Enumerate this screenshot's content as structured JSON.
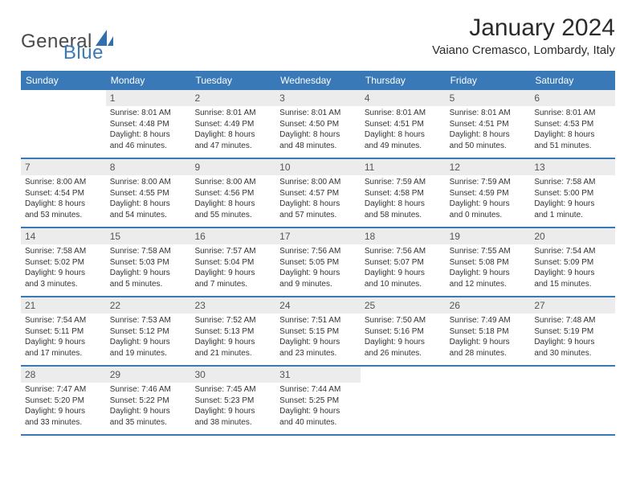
{
  "logo": {
    "word1": "General",
    "word2": "Blue",
    "tri_color": "#2f6fae"
  },
  "header": {
    "month_title": "January 2024",
    "location": "Vaiano Cremasco, Lombardy, Italy"
  },
  "styling": {
    "header_bg": "#3a79b7",
    "header_text": "#ffffff",
    "row_divider": "#3a79b7",
    "daynum_bg": "#ececec",
    "body_text": "#333333",
    "page_bg": "#ffffff",
    "title_fontsize": 30,
    "location_fontsize": 15,
    "dayheader_fontsize": 12,
    "cell_fontsize": 10
  },
  "day_headers": [
    "Sunday",
    "Monday",
    "Tuesday",
    "Wednesday",
    "Thursday",
    "Friday",
    "Saturday"
  ],
  "weeks": [
    [
      {
        "blank": true
      },
      {
        "num": "1",
        "sunrise": "Sunrise: 8:01 AM",
        "sunset": "Sunset: 4:48 PM",
        "day1": "Daylight: 8 hours",
        "day2": "and 46 minutes."
      },
      {
        "num": "2",
        "sunrise": "Sunrise: 8:01 AM",
        "sunset": "Sunset: 4:49 PM",
        "day1": "Daylight: 8 hours",
        "day2": "and 47 minutes."
      },
      {
        "num": "3",
        "sunrise": "Sunrise: 8:01 AM",
        "sunset": "Sunset: 4:50 PM",
        "day1": "Daylight: 8 hours",
        "day2": "and 48 minutes."
      },
      {
        "num": "4",
        "sunrise": "Sunrise: 8:01 AM",
        "sunset": "Sunset: 4:51 PM",
        "day1": "Daylight: 8 hours",
        "day2": "and 49 minutes."
      },
      {
        "num": "5",
        "sunrise": "Sunrise: 8:01 AM",
        "sunset": "Sunset: 4:51 PM",
        "day1": "Daylight: 8 hours",
        "day2": "and 50 minutes."
      },
      {
        "num": "6",
        "sunrise": "Sunrise: 8:01 AM",
        "sunset": "Sunset: 4:53 PM",
        "day1": "Daylight: 8 hours",
        "day2": "and 51 minutes."
      }
    ],
    [
      {
        "num": "7",
        "sunrise": "Sunrise: 8:00 AM",
        "sunset": "Sunset: 4:54 PM",
        "day1": "Daylight: 8 hours",
        "day2": "and 53 minutes."
      },
      {
        "num": "8",
        "sunrise": "Sunrise: 8:00 AM",
        "sunset": "Sunset: 4:55 PM",
        "day1": "Daylight: 8 hours",
        "day2": "and 54 minutes."
      },
      {
        "num": "9",
        "sunrise": "Sunrise: 8:00 AM",
        "sunset": "Sunset: 4:56 PM",
        "day1": "Daylight: 8 hours",
        "day2": "and 55 minutes."
      },
      {
        "num": "10",
        "sunrise": "Sunrise: 8:00 AM",
        "sunset": "Sunset: 4:57 PM",
        "day1": "Daylight: 8 hours",
        "day2": "and 57 minutes."
      },
      {
        "num": "11",
        "sunrise": "Sunrise: 7:59 AM",
        "sunset": "Sunset: 4:58 PM",
        "day1": "Daylight: 8 hours",
        "day2": "and 58 minutes."
      },
      {
        "num": "12",
        "sunrise": "Sunrise: 7:59 AM",
        "sunset": "Sunset: 4:59 PM",
        "day1": "Daylight: 9 hours",
        "day2": "and 0 minutes."
      },
      {
        "num": "13",
        "sunrise": "Sunrise: 7:58 AM",
        "sunset": "Sunset: 5:00 PM",
        "day1": "Daylight: 9 hours",
        "day2": "and 1 minute."
      }
    ],
    [
      {
        "num": "14",
        "sunrise": "Sunrise: 7:58 AM",
        "sunset": "Sunset: 5:02 PM",
        "day1": "Daylight: 9 hours",
        "day2": "and 3 minutes."
      },
      {
        "num": "15",
        "sunrise": "Sunrise: 7:58 AM",
        "sunset": "Sunset: 5:03 PM",
        "day1": "Daylight: 9 hours",
        "day2": "and 5 minutes."
      },
      {
        "num": "16",
        "sunrise": "Sunrise: 7:57 AM",
        "sunset": "Sunset: 5:04 PM",
        "day1": "Daylight: 9 hours",
        "day2": "and 7 minutes."
      },
      {
        "num": "17",
        "sunrise": "Sunrise: 7:56 AM",
        "sunset": "Sunset: 5:05 PM",
        "day1": "Daylight: 9 hours",
        "day2": "and 9 minutes."
      },
      {
        "num": "18",
        "sunrise": "Sunrise: 7:56 AM",
        "sunset": "Sunset: 5:07 PM",
        "day1": "Daylight: 9 hours",
        "day2": "and 10 minutes."
      },
      {
        "num": "19",
        "sunrise": "Sunrise: 7:55 AM",
        "sunset": "Sunset: 5:08 PM",
        "day1": "Daylight: 9 hours",
        "day2": "and 12 minutes."
      },
      {
        "num": "20",
        "sunrise": "Sunrise: 7:54 AM",
        "sunset": "Sunset: 5:09 PM",
        "day1": "Daylight: 9 hours",
        "day2": "and 15 minutes."
      }
    ],
    [
      {
        "num": "21",
        "sunrise": "Sunrise: 7:54 AM",
        "sunset": "Sunset: 5:11 PM",
        "day1": "Daylight: 9 hours",
        "day2": "and 17 minutes."
      },
      {
        "num": "22",
        "sunrise": "Sunrise: 7:53 AM",
        "sunset": "Sunset: 5:12 PM",
        "day1": "Daylight: 9 hours",
        "day2": "and 19 minutes."
      },
      {
        "num": "23",
        "sunrise": "Sunrise: 7:52 AM",
        "sunset": "Sunset: 5:13 PM",
        "day1": "Daylight: 9 hours",
        "day2": "and 21 minutes."
      },
      {
        "num": "24",
        "sunrise": "Sunrise: 7:51 AM",
        "sunset": "Sunset: 5:15 PM",
        "day1": "Daylight: 9 hours",
        "day2": "and 23 minutes."
      },
      {
        "num": "25",
        "sunrise": "Sunrise: 7:50 AM",
        "sunset": "Sunset: 5:16 PM",
        "day1": "Daylight: 9 hours",
        "day2": "and 26 minutes."
      },
      {
        "num": "26",
        "sunrise": "Sunrise: 7:49 AM",
        "sunset": "Sunset: 5:18 PM",
        "day1": "Daylight: 9 hours",
        "day2": "and 28 minutes."
      },
      {
        "num": "27",
        "sunrise": "Sunrise: 7:48 AM",
        "sunset": "Sunset: 5:19 PM",
        "day1": "Daylight: 9 hours",
        "day2": "and 30 minutes."
      }
    ],
    [
      {
        "num": "28",
        "sunrise": "Sunrise: 7:47 AM",
        "sunset": "Sunset: 5:20 PM",
        "day1": "Daylight: 9 hours",
        "day2": "and 33 minutes."
      },
      {
        "num": "29",
        "sunrise": "Sunrise: 7:46 AM",
        "sunset": "Sunset: 5:22 PM",
        "day1": "Daylight: 9 hours",
        "day2": "and 35 minutes."
      },
      {
        "num": "30",
        "sunrise": "Sunrise: 7:45 AM",
        "sunset": "Sunset: 5:23 PM",
        "day1": "Daylight: 9 hours",
        "day2": "and 38 minutes."
      },
      {
        "num": "31",
        "sunrise": "Sunrise: 7:44 AM",
        "sunset": "Sunset: 5:25 PM",
        "day1": "Daylight: 9 hours",
        "day2": "and 40 minutes."
      },
      {
        "blank": true
      },
      {
        "blank": true
      },
      {
        "blank": true
      }
    ]
  ]
}
